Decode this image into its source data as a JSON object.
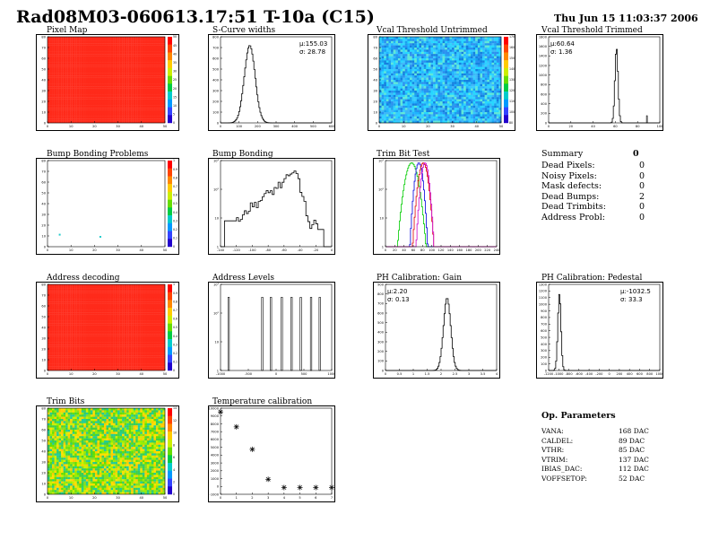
{
  "header": {
    "title": "Rad08M03-060613.17:51 T-10a (C15)",
    "timestamp": "Thu Jun 15 11:03:37 2006"
  },
  "colors": {
    "hist_line": "#000000",
    "map_fill": "#ff2a1a",
    "trim_green": "#00cc00",
    "trim_blue": "#0000dd",
    "trim_red": "#dd0000",
    "trim_magenta": "#cc00cc"
  },
  "summary": {
    "title": "Summary",
    "total": "0",
    "rows": [
      {
        "label": "Dead Pixels:",
        "value": "0"
      },
      {
        "label": "Noisy Pixels:",
        "value": "0"
      },
      {
        "label": "Mask defects:",
        "value": "0"
      },
      {
        "label": "Dead Bumps:",
        "value": "2"
      },
      {
        "label": "Dead Trimbits:",
        "value": "0"
      },
      {
        "label": "Address Probl:",
        "value": "0"
      }
    ]
  },
  "op_params": {
    "title": "Op. Parameters",
    "rows": [
      {
        "label": "VANA:",
        "value": "168 DAC"
      },
      {
        "label": "CALDEL:",
        "value": "89 DAC"
      },
      {
        "label": "VTHR:",
        "value": "85 DAC"
      },
      {
        "label": "VTRIM:",
        "value": "137 DAC"
      },
      {
        "label": "IBIAS_DAC:",
        "value": "112 DAC"
      },
      {
        "label": "VOFFSETOP:",
        "value": "52 DAC"
      }
    ]
  },
  "chart_data": [
    {
      "id": "pixel-map",
      "type": "heatmap",
      "title": "Pixel Map",
      "x_ticks": [
        "0",
        "10",
        "20",
        "30",
        "40",
        "50"
      ],
      "y_ticks": [
        "0",
        "10",
        "20",
        "30",
        "40",
        "50",
        "60",
        "70",
        "80"
      ],
      "palette_ticks": [
        "0",
        "5",
        "10",
        "15",
        "20",
        "25",
        "30",
        "35",
        "40",
        "45",
        "50"
      ],
      "fill": "uniform-red"
    },
    {
      "id": "s-curve-widths",
      "type": "bar",
      "title": "S-Curve widths",
      "x_ticks": [
        "0",
        "100",
        "200",
        "300",
        "400",
        "500",
        "600"
      ],
      "y_ticks": [
        "0",
        "100",
        "200",
        "300",
        "400",
        "500",
        "600",
        "700",
        "800"
      ],
      "stats": [
        "µ:155.03",
        "σ: 28.78"
      ],
      "xlim": [
        0,
        600
      ],
      "ylim": [
        0,
        800
      ],
      "peak_x": 155,
      "sigma": 29,
      "peak_y": 720
    },
    {
      "id": "vcal-threshold-untrimmed",
      "type": "heatmap",
      "title": "Vcal Threshold Untrimmed",
      "x_ticks": [
        "0",
        "10",
        "20",
        "30",
        "40",
        "50"
      ],
      "y_ticks": [
        "0",
        "10",
        "20",
        "30",
        "40",
        "50",
        "60",
        "70",
        "80"
      ],
      "palette_ticks": [
        "80",
        "100",
        "110",
        "120",
        "130",
        "140",
        "150",
        "160",
        "170"
      ],
      "fill": "noisy-cyan-blue"
    },
    {
      "id": "vcal-threshold-trimmed",
      "type": "bar",
      "title": "Vcal Threshold Trimmed",
      "x_ticks": [
        "0",
        "20",
        "40",
        "60",
        "80",
        "100"
      ],
      "y_ticks": [
        "0",
        "200",
        "400",
        "600",
        "800",
        "1000",
        "1200",
        "1400",
        "1600",
        "1800"
      ],
      "stats": [
        "µ:60.64",
        "σ: 1.36"
      ],
      "xlim": [
        0,
        100
      ],
      "ylim": [
        0,
        2000
      ],
      "peak_x": 60.6,
      "sigma": 1.4,
      "peak_y": 1750
    },
    {
      "id": "bump-bonding-problems",
      "type": "heatmap",
      "title": "Bump Bonding Problems",
      "x_ticks": [
        "0",
        "10",
        "20",
        "30",
        "40",
        "50"
      ],
      "y_ticks": [
        "0",
        "10",
        "20",
        "30",
        "40",
        "50",
        "60",
        "70",
        "80"
      ],
      "palette_ticks": [
        "0",
        "0.1",
        "0.2",
        "0.3",
        "0.4",
        "0.5",
        "0.6",
        "0.7",
        "0.8",
        "0.9",
        "1"
      ],
      "points": [
        [
          5,
          12
        ],
        [
          23,
          10
        ]
      ]
    },
    {
      "id": "bump-bonding",
      "type": "bar",
      "title": "Bump Bonding",
      "x_ticks": [
        "-140",
        "-120",
        "-100",
        "-80",
        "-60",
        "-40",
        "-20",
        "0"
      ],
      "y_ticks": [
        "1",
        "10",
        "10²",
        "10³"
      ],
      "log_y": true,
      "xlim": [
        -140,
        0
      ],
      "shape": "bump"
    },
    {
      "id": "trim-bit-test",
      "type": "line",
      "title": "Trim Bit Test",
      "x_ticks": [
        "0",
        "20",
        "40",
        "60",
        "80",
        "100",
        "120",
        "140",
        "160",
        "180",
        "200",
        "220",
        "240"
      ],
      "y_ticks": [
        "1",
        "10",
        "10²",
        "10³"
      ],
      "log_y": true,
      "xlim": [
        0,
        250
      ],
      "series": [
        {
          "name": "",
          "mean": 58,
          "sigma": 8,
          "color": "#00cc00"
        },
        {
          "name": "",
          "mean": 74,
          "sigma": 5,
          "color": "#0000dd"
        },
        {
          "name": "",
          "mean": 84,
          "sigma": 6,
          "color": "#dd0000"
        },
        {
          "name": "",
          "mean": 88,
          "sigma": 5,
          "color": "#cc00cc"
        }
      ]
    },
    {
      "id": "address-decoding",
      "type": "heatmap",
      "title": "Address decoding",
      "x_ticks": [
        "0",
        "10",
        "20",
        "30",
        "40",
        "50"
      ],
      "y_ticks": [
        "0",
        "10",
        "20",
        "30",
        "40",
        "50",
        "60",
        "70",
        "80"
      ],
      "palette_ticks": [
        "0",
        "0.1",
        "0.2",
        "0.3",
        "0.4",
        "0.5",
        "0.6",
        "0.7",
        "0.8",
        "0.9",
        "1"
      ],
      "fill": "uniform-red"
    },
    {
      "id": "address-levels",
      "type": "bar",
      "title": "Address Levels",
      "x_ticks": [
        "-1000",
        "-500",
        "0",
        "500",
        "1000"
      ],
      "y_ticks": [
        "1",
        "10",
        "10²",
        "10³"
      ],
      "log_y": true,
      "xlim": [
        -1050,
        1000
      ],
      "peaks": [
        -900,
        -280,
        -120,
        80,
        260,
        430,
        620,
        780
      ]
    },
    {
      "id": "ph-calibration-gain",
      "type": "bar",
      "title": "PH Calibration: Gain",
      "x_ticks": [
        "0",
        "0.5",
        "1",
        "1.5",
        "2",
        "2.5",
        "3",
        "3.5",
        "4"
      ],
      "y_ticks": [
        "0",
        "100",
        "200",
        "300",
        "400",
        "500",
        "600",
        "700",
        "800",
        "900"
      ],
      "stats": [
        "µ:2.20",
        "σ: 0.13"
      ],
      "xlim": [
        0,
        4
      ],
      "ylim": [
        0,
        950
      ],
      "peak_x": 2.2,
      "sigma": 0.13,
      "peak_y": 800
    },
    {
      "id": "ph-calibration-pedestal",
      "type": "bar",
      "title": "PH Calibration: Pedestal",
      "x_ticks": [
        "-1200",
        "-1000",
        "-800",
        "-600",
        "-400",
        "-200",
        "0",
        "200",
        "400",
        "600",
        "800",
        "1000"
      ],
      "y_ticks": [
        "0",
        "100",
        "200",
        "300",
        "400",
        "500",
        "600",
        "700",
        "800",
        "900",
        "1000",
        "1100",
        "1200",
        "1300"
      ],
      "stats": [
        "µ:-1032.5",
        "σ: 33.3"
      ],
      "xlim": [
        -1250,
        1100
      ],
      "ylim": [
        0,
        1350
      ],
      "peak_x": -1032.5,
      "sigma": 33.3,
      "peak_y": 1200
    },
    {
      "id": "trim-bits",
      "type": "heatmap",
      "title": "Trim Bits",
      "x_ticks": [
        "0",
        "10",
        "20",
        "30",
        "40",
        "50"
      ],
      "y_ticks": [
        "0",
        "10",
        "20",
        "30",
        "40",
        "50",
        "60",
        "70",
        "80"
      ],
      "palette_ticks": [
        "0",
        "2",
        "4",
        "6",
        "8",
        "10",
        "12",
        "14"
      ],
      "fill": "noisy-green-yellow"
    },
    {
      "id": "temperature-calibration",
      "type": "scatter",
      "title": "Temperature calibration",
      "x_ticks": [
        "0",
        "1",
        "2",
        "3",
        "4",
        "5",
        "6",
        "7"
      ],
      "y_ticks": [
        "-1000",
        "0",
        "1000",
        "2000",
        "3000",
        "4000",
        "5000",
        "6000",
        "7000",
        "8000",
        "9000",
        "10000"
      ],
      "xlim": [
        0,
        7
      ],
      "ylim": [
        -1000,
        10500
      ],
      "x": [
        0,
        1,
        2,
        3,
        4,
        5,
        6,
        7
      ],
      "y": [
        10000,
        8000,
        5000,
        1000,
        -100,
        -100,
        -100,
        -100
      ]
    }
  ]
}
